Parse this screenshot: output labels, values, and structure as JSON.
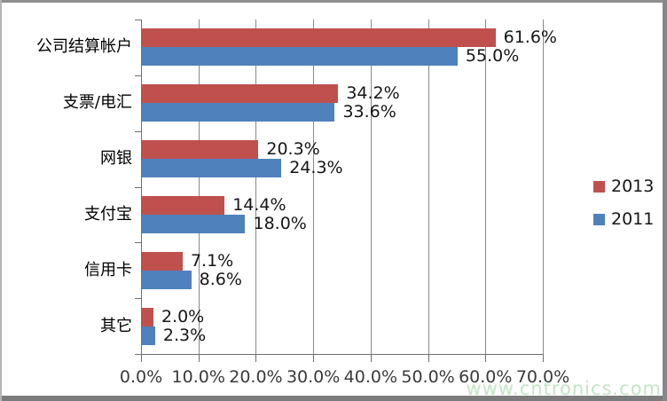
{
  "chart_data": {
    "type": "bar",
    "orientation": "horizontal",
    "title": "",
    "categories": [
      "公司结算帐户",
      "支票/电汇",
      "网银",
      "支付宝",
      "信用卡",
      "其它"
    ],
    "series": [
      {
        "name": "2013",
        "color": "#C0504D",
        "values": [
          61.6,
          34.2,
          20.3,
          14.4,
          7.1,
          2.0
        ],
        "value_labels": [
          "61.6%",
          "34.2%",
          "20.3%",
          "14.4%",
          "7.1%",
          "2.0%"
        ]
      },
      {
        "name": "2011",
        "color": "#4F81BD",
        "values": [
          55.0,
          33.6,
          24.3,
          18.0,
          8.6,
          2.3
        ],
        "value_labels": [
          "55.0%",
          "33.6%",
          "24.3%",
          "18.0%",
          "8.6%",
          "2.3%"
        ]
      }
    ],
    "x_axis": {
      "min": 0,
      "max": 70,
      "tick_step": 10,
      "tick_labels": [
        "0.0%",
        "10.0%",
        "20.0%",
        "30.0%",
        "40.0%",
        "50.0%",
        "60.0%",
        "70.0%"
      ]
    },
    "grid": true,
    "legend_position": "right"
  },
  "watermark": {
    "text": "www.cntronics.com",
    "color": "#c3e5c6"
  }
}
